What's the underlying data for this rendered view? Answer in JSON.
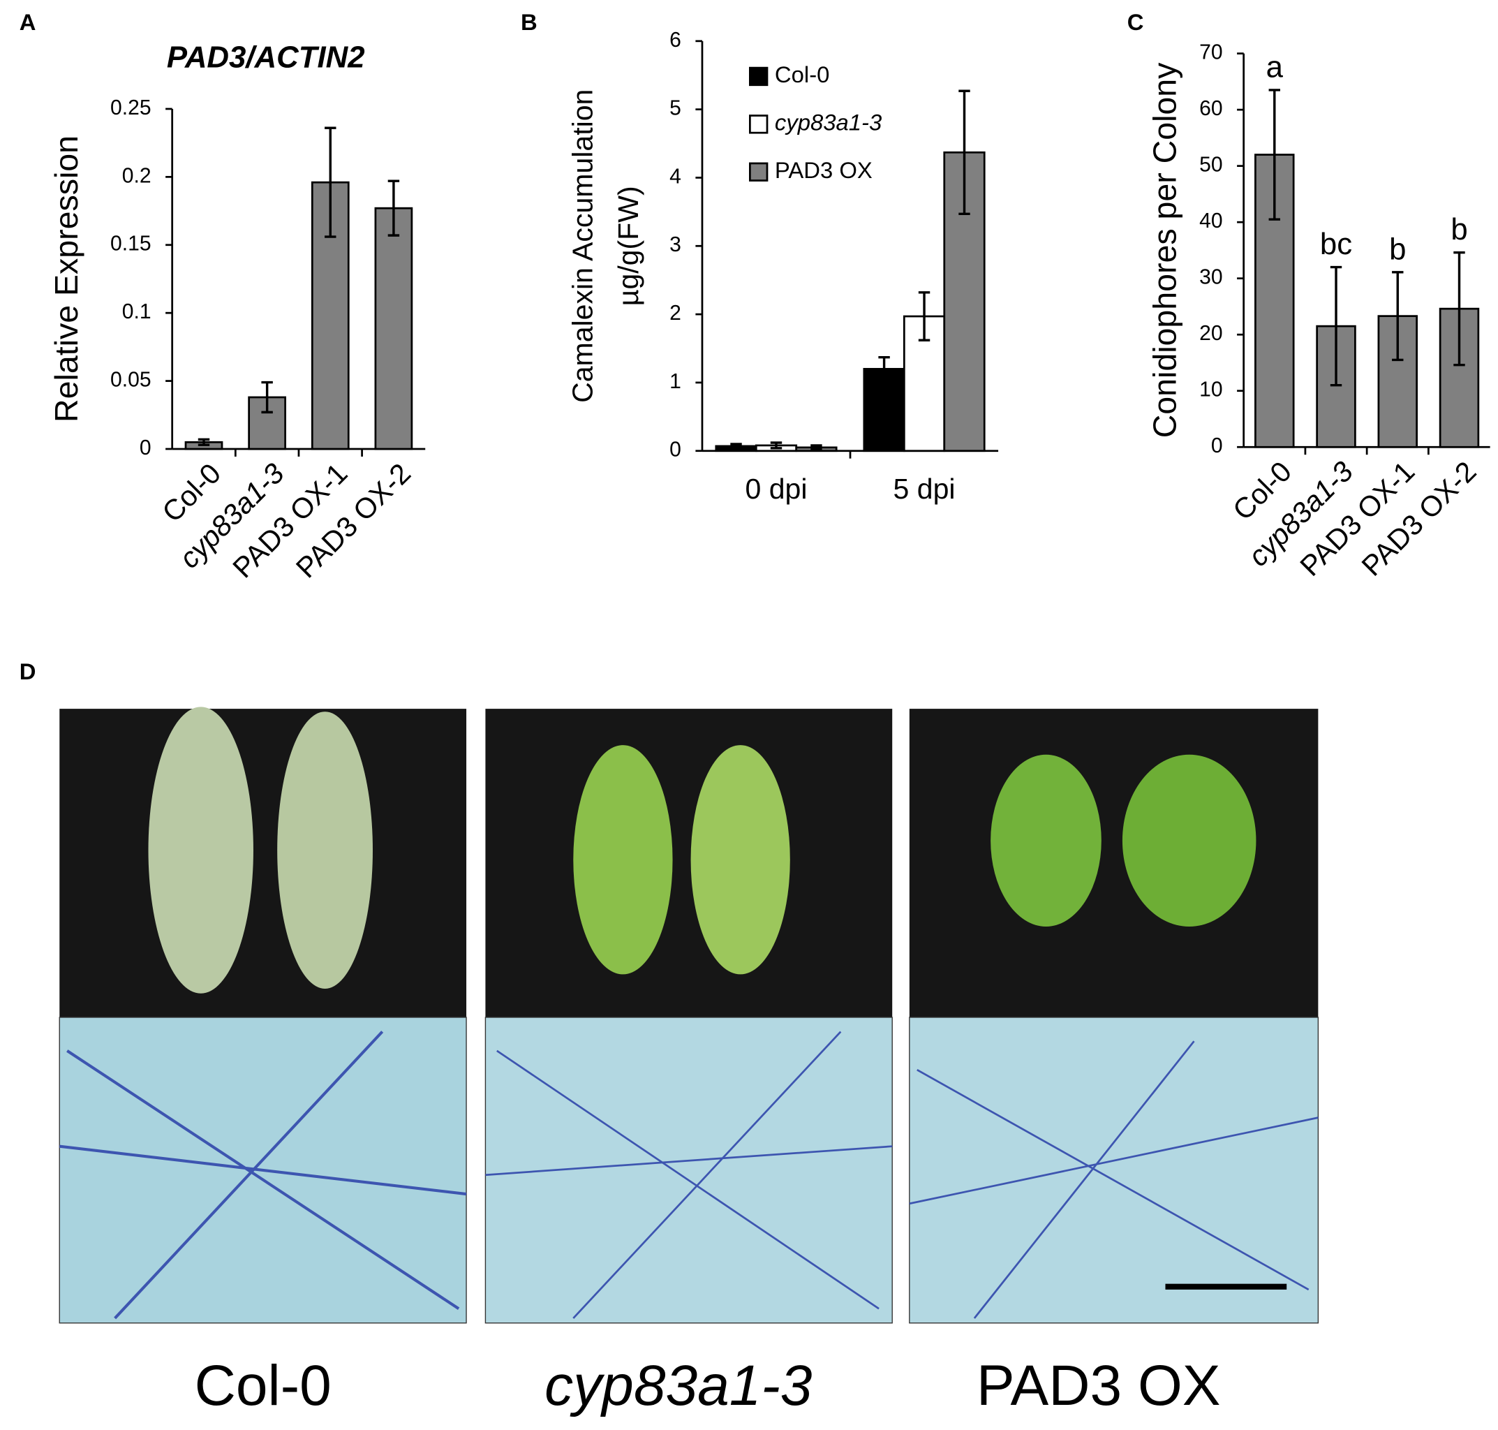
{
  "chart_data": [
    {
      "type": "bar",
      "panel": "A",
      "title": "PAD3/ACTIN2",
      "y_label": [
        "Relative Expression"
      ],
      "categories": [
        "Col-0",
        "cyp83a1-3",
        "PAD3 OX-1",
        "PAD3 OX-2"
      ],
      "values": [
        0.005,
        0.038,
        0.196,
        0.177
      ],
      "errors": [
        0.002,
        0.011,
        0.04,
        0.02
      ],
      "color": "#808080",
      "ylim": [
        0,
        0.25
      ],
      "yticks": [
        0,
        0.05,
        0.1,
        0.15,
        0.2,
        0.25
      ]
    },
    {
      "type": "bar",
      "panel": "B",
      "y_label": [
        "Camalexin Accumulation",
        "µg/g(FW)"
      ],
      "categories": [
        "0 dpi",
        "5 dpi"
      ],
      "series": [
        {
          "name": "Col-0",
          "color": "#000000",
          "values": [
            0.07,
            1.2
          ],
          "errors": [
            0.03,
            0.17
          ]
        },
        {
          "name": "cyp83a1-3",
          "color": "#ffffff",
          "values": [
            0.08,
            1.97
          ],
          "errors": [
            0.04,
            0.35
          ]
        },
        {
          "name": "PAD3 OX",
          "color": "#808080",
          "values": [
            0.05,
            4.37
          ],
          "errors": [
            0.03,
            0.9
          ]
        }
      ],
      "ylim": [
        0,
        6
      ],
      "yticks": [
        0,
        1,
        2,
        3,
        4,
        5,
        6
      ],
      "legend": "upper left"
    },
    {
      "type": "bar",
      "panel": "C",
      "y_label": [
        "Conidiophores per Colony"
      ],
      "categories": [
        "Col-0",
        "cyp83a1-3",
        "PAD3 OX-1",
        "PAD3 OX-2"
      ],
      "values": [
        52,
        21.5,
        23.3,
        24.6
      ],
      "errors": [
        11.5,
        10.5,
        7.8,
        10
      ],
      "color": "#808080",
      "annotations": [
        "a",
        "bc",
        "b",
        "b"
      ],
      "ylim": [
        0,
        70
      ],
      "yticks": [
        0,
        10,
        20,
        30,
        40,
        50,
        60,
        70
      ]
    }
  ],
  "photo_panel": {
    "panel": "D",
    "columns": [
      "Col-0",
      "cyp83a1-3",
      "PAD3 OX"
    ]
  }
}
